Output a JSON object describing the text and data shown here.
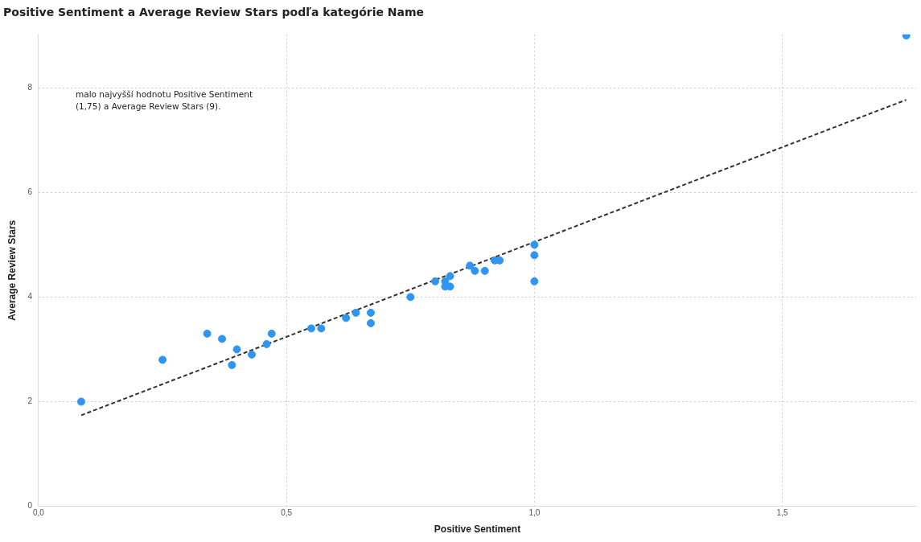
{
  "chart_data": {
    "type": "scatter",
    "title": "Positive Sentiment a Average Review Stars podľa kategórie Name",
    "xlabel": "Positive Sentiment",
    "ylabel": "Average Review Stars",
    "annotations": [
      "malo najvyšší hodnotu Positive Sentiment (1,75) a Average Review Stars (9)."
    ],
    "xlim": [
      0,
      1.77
    ],
    "xticks": [
      {
        "value": 0,
        "label": "0,0"
      },
      {
        "value": 0.5,
        "label": "0,5"
      },
      {
        "value": 1,
        "label": "1,0"
      },
      {
        "value": 1.5,
        "label": "1,5"
      }
    ],
    "ylim": [
      0,
      9.02
    ],
    "yticks": [
      0,
      2,
      4,
      6,
      8
    ],
    "grid": true,
    "legend": false,
    "marker": "circle",
    "series": [
      {
        "type": "scatter",
        "color": "#2f95f0",
        "x": [
          0.086,
          0.25,
          0.34,
          0.37,
          0.39,
          0.4,
          0.43,
          0.46,
          0.47,
          0.55,
          0.57,
          0.62,
          0.64,
          0.67,
          0.67,
          0.75,
          0.8,
          0.82,
          0.82,
          0.83,
          0.83,
          0.87,
          0.88,
          0.9,
          0.92,
          0.93,
          1.0,
          1.0,
          1.0,
          1.75
        ],
        "values": [
          2.0,
          2.8,
          3.3,
          3.2,
          2.7,
          3.0,
          2.9,
          3.1,
          3.3,
          3.4,
          3.4,
          3.6,
          3.7,
          3.5,
          3.7,
          4.0,
          4.3,
          4.2,
          4.3,
          4.2,
          4.4,
          4.6,
          4.5,
          4.5,
          4.7,
          4.7,
          5.0,
          4.8,
          4.3,
          9.0
        ]
      },
      {
        "type": "line",
        "color": "#333333",
        "line_style": "dashed",
        "marker": "none",
        "x": [
          0.086,
          1.75
        ],
        "values": [
          1.74,
          7.77
        ]
      }
    ]
  }
}
